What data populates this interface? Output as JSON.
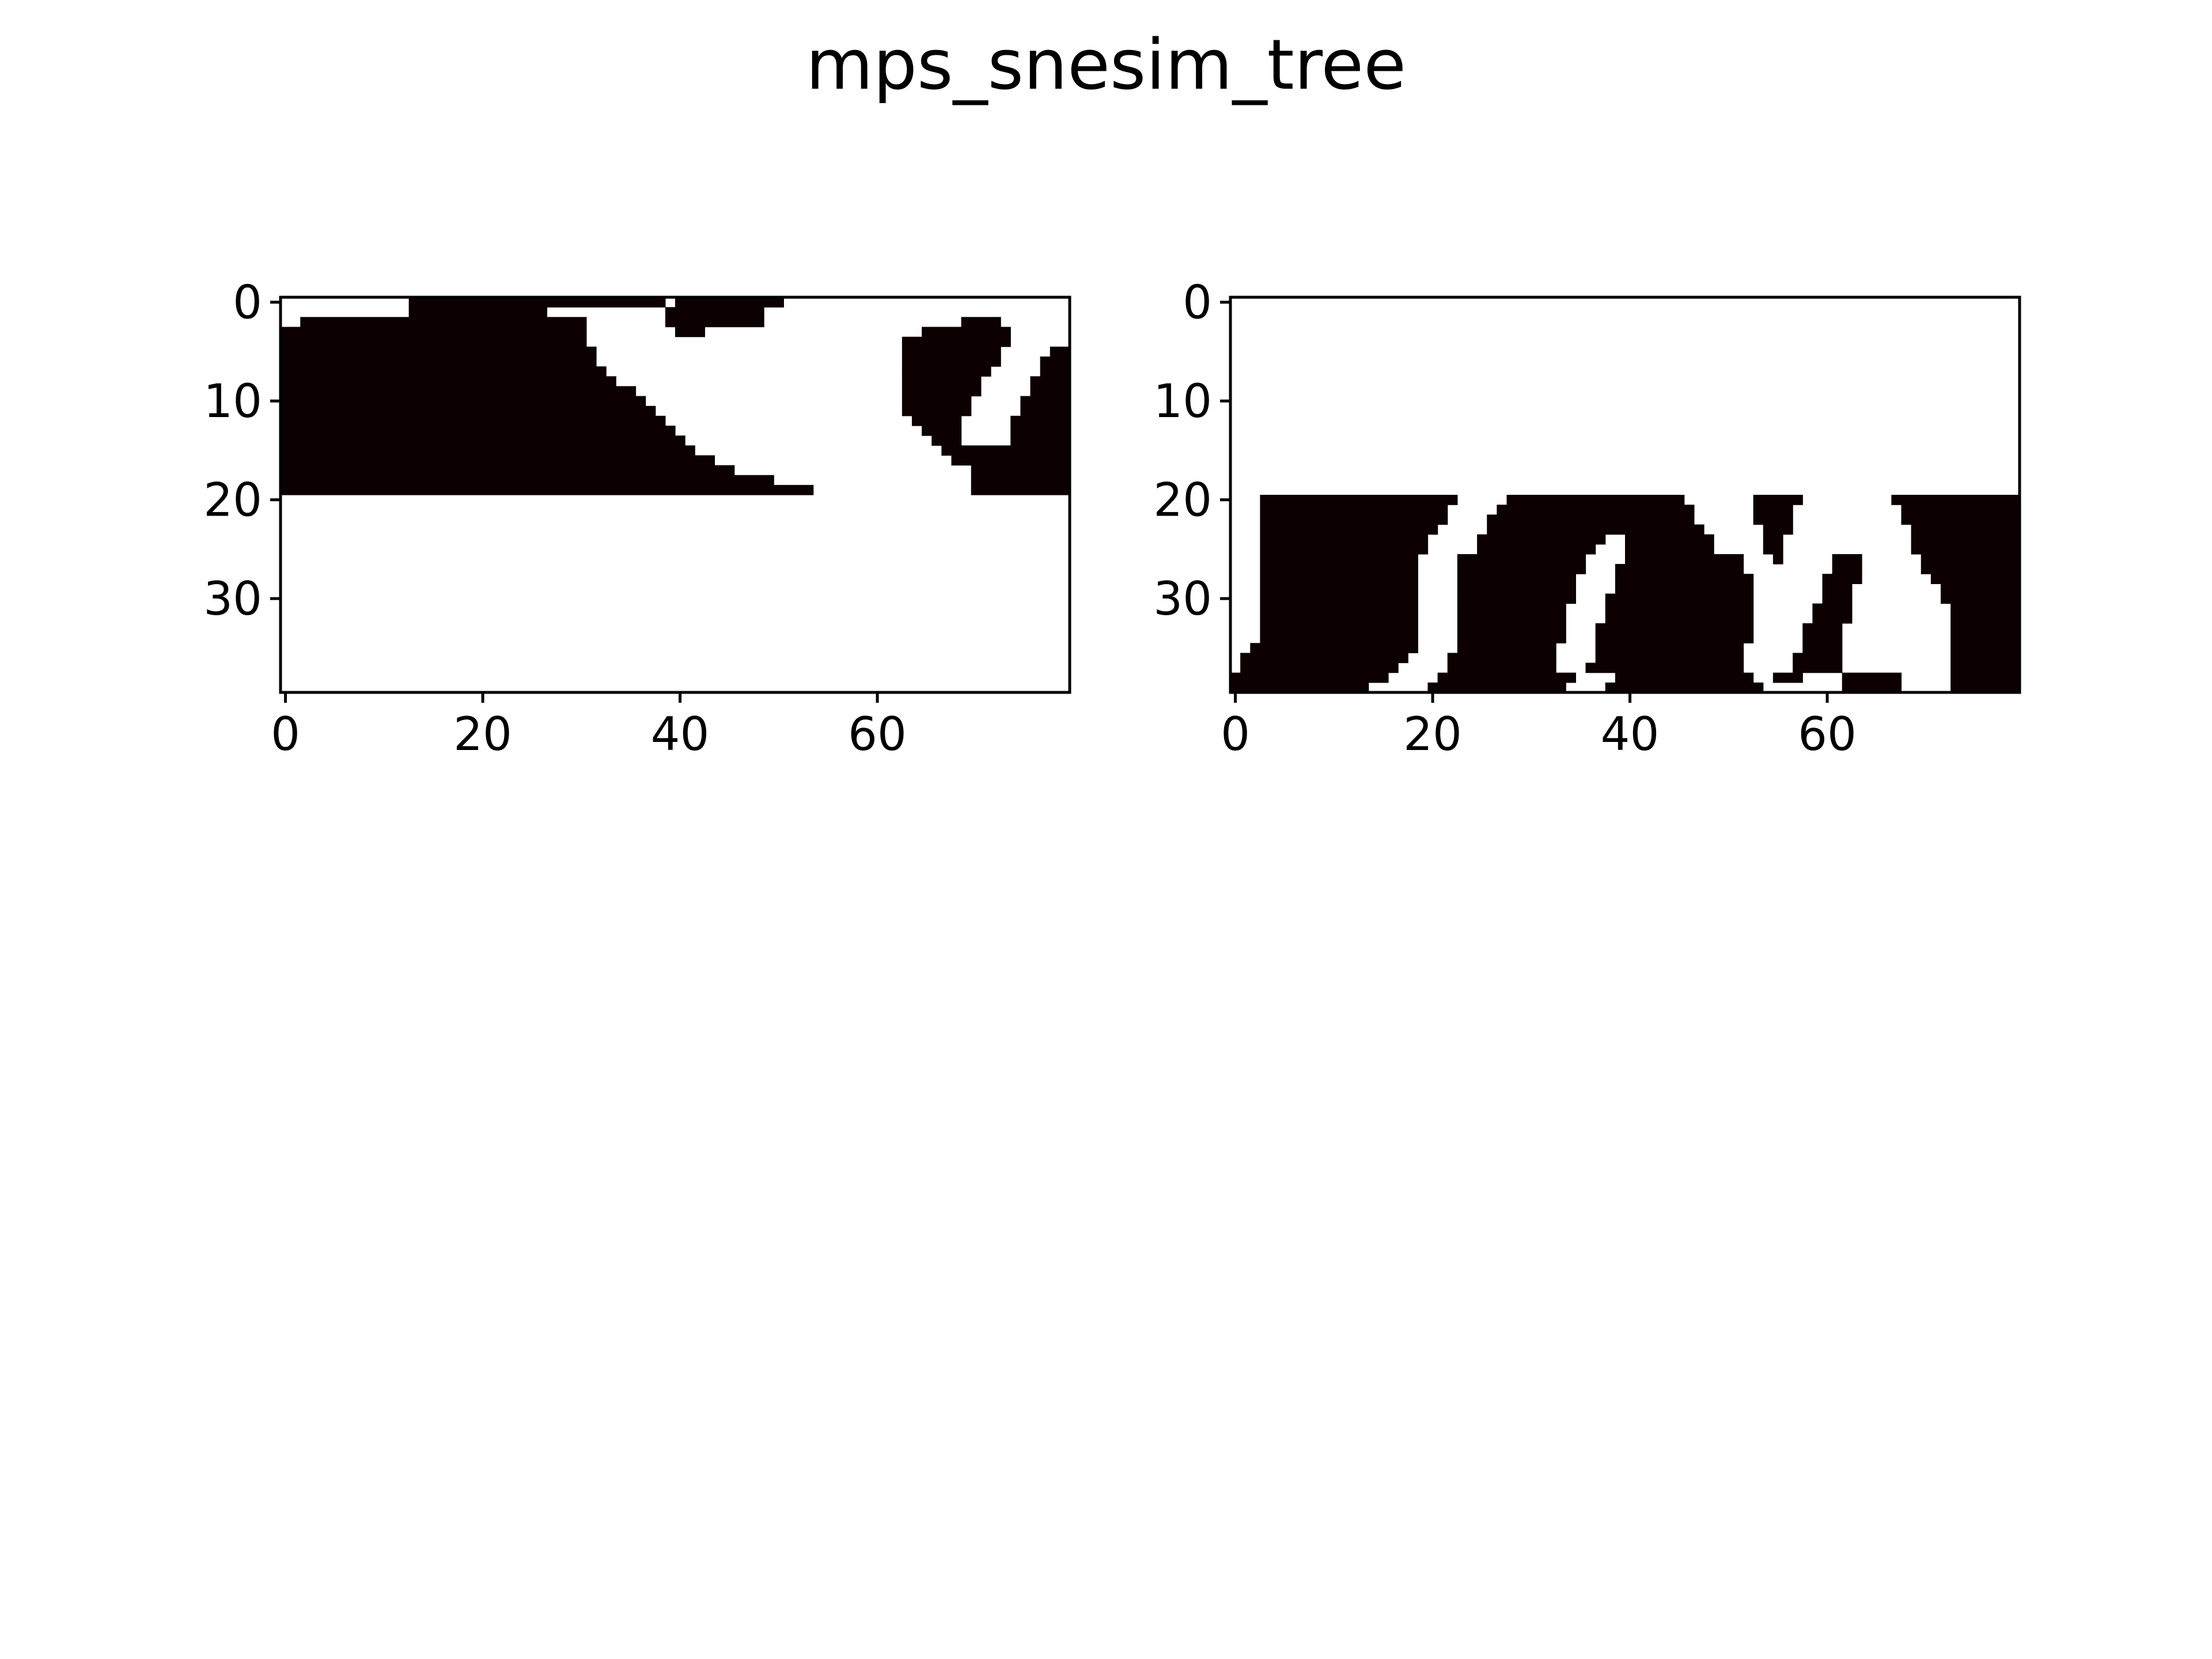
{
  "title": "mps_snesim_tree",
  "colors": {
    "facies_0": "#ffffff",
    "facies_1": "#0c0000",
    "axis": "#000000"
  },
  "chart_data": [
    {
      "type": "heatmap",
      "title": "",
      "grid": false,
      "nx": 80,
      "ny": 40,
      "xlim": [
        -0.5,
        79.5
      ],
      "ylim": [
        39.5,
        -0.5
      ],
      "xticks": [
        0,
        20,
        40,
        60
      ],
      "yticks": [
        0,
        10,
        20,
        30
      ],
      "xtick_labels": [
        "0",
        "20",
        "40",
        "60"
      ],
      "ytick_labels": [
        "0",
        "10",
        "20",
        "30"
      ],
      "value_encoding": "each row lists [start_col, end_col_exclusive] runs of value 1; all other cells are 0",
      "runs": [
        [
          [
            13,
            39
          ],
          [
            40,
            51
          ]
        ],
        [
          [
            13,
            27
          ],
          [
            39,
            49
          ]
        ],
        [
          [
            2,
            31
          ],
          [
            39,
            49
          ],
          [
            69,
            73
          ]
        ],
        [
          [
            0,
            31
          ],
          [
            40,
            43
          ],
          [
            65,
            74
          ]
        ],
        [
          [
            0,
            31
          ],
          [
            63,
            74
          ]
        ],
        [
          [
            0,
            32
          ],
          [
            63,
            73
          ],
          [
            78,
            80
          ]
        ],
        [
          [
            0,
            32
          ],
          [
            63,
            73
          ],
          [
            77,
            80
          ]
        ],
        [
          [
            0,
            33
          ],
          [
            63,
            72
          ],
          [
            77,
            80
          ]
        ],
        [
          [
            0,
            34
          ],
          [
            63,
            71
          ],
          [
            76,
            80
          ]
        ],
        [
          [
            0,
            36
          ],
          [
            63,
            71
          ],
          [
            76,
            80
          ]
        ],
        [
          [
            0,
            37
          ],
          [
            63,
            70
          ],
          [
            75,
            80
          ]
        ],
        [
          [
            0,
            38
          ],
          [
            63,
            70
          ],
          [
            75,
            80
          ]
        ],
        [
          [
            0,
            39
          ],
          [
            64,
            69
          ],
          [
            74,
            80
          ]
        ],
        [
          [
            0,
            40
          ],
          [
            65,
            69
          ],
          [
            74,
            80
          ]
        ],
        [
          [
            0,
            41
          ],
          [
            66,
            69
          ],
          [
            74,
            80
          ]
        ],
        [
          [
            0,
            42
          ],
          [
            67,
            80
          ]
        ],
        [
          [
            0,
            44
          ],
          [
            68,
            80
          ]
        ],
        [
          [
            0,
            46
          ],
          [
            70,
            80
          ]
        ],
        [
          [
            0,
            50
          ],
          [
            70,
            80
          ]
        ],
        [
          [
            0,
            54
          ],
          [
            70,
            80
          ]
        ]
      ]
    },
    {
      "type": "heatmap",
      "title": "",
      "grid": false,
      "nx": 80,
      "ny": 40,
      "xlim": [
        -0.5,
        79.5
      ],
      "ylim": [
        39.5,
        -0.5
      ],
      "xticks": [
        0,
        20,
        40,
        60
      ],
      "yticks": [
        0,
        10,
        20,
        30
      ],
      "xtick_labels": [
        "0",
        "20",
        "40",
        "60"
      ],
      "ytick_labels": [
        "0",
        "10",
        "20",
        "30"
      ],
      "value_encoding": "each row lists [start_col, end_col_exclusive] runs of value 1; all other cells are 0",
      "row_offset": 20,
      "runs": [
        [
          [
            3,
            23
          ],
          [
            28,
            46
          ],
          [
            53,
            58
          ],
          [
            67,
            80
          ]
        ],
        [
          [
            3,
            22
          ],
          [
            27,
            47
          ],
          [
            53,
            57
          ],
          [
            68,
            80
          ]
        ],
        [
          [
            3,
            22
          ],
          [
            26,
            47
          ],
          [
            53,
            57
          ],
          [
            68,
            80
          ]
        ],
        [
          [
            3,
            21
          ],
          [
            26,
            48
          ],
          [
            54,
            57
          ],
          [
            69,
            80
          ]
        ],
        [
          [
            3,
            20
          ],
          [
            25,
            38
          ],
          [
            40,
            49
          ],
          [
            54,
            56
          ],
          [
            69,
            80
          ]
        ],
        [
          [
            3,
            20
          ],
          [
            25,
            37
          ],
          [
            40,
            49
          ],
          [
            54,
            56
          ],
          [
            69,
            80
          ]
        ],
        [
          [
            3,
            19
          ],
          [
            23,
            36
          ],
          [
            40,
            52
          ],
          [
            55,
            56
          ],
          [
            61,
            64
          ],
          [
            70,
            80
          ]
        ],
        [
          [
            3,
            19
          ],
          [
            23,
            36
          ],
          [
            39,
            52
          ],
          [
            61,
            64
          ],
          [
            70,
            80
          ]
        ],
        [
          [
            3,
            19
          ],
          [
            23,
            35
          ],
          [
            39,
            53
          ],
          [
            60,
            64
          ],
          [
            71,
            80
          ]
        ],
        [
          [
            3,
            19
          ],
          [
            23,
            35
          ],
          [
            39,
            53
          ],
          [
            60,
            63
          ],
          [
            72,
            80
          ]
        ],
        [
          [
            3,
            19
          ],
          [
            23,
            35
          ],
          [
            38,
            53
          ],
          [
            60,
            63
          ],
          [
            72,
            80
          ]
        ],
        [
          [
            3,
            19
          ],
          [
            23,
            34
          ],
          [
            38,
            53
          ],
          [
            59,
            63
          ],
          [
            73,
            80
          ]
        ],
        [
          [
            3,
            19
          ],
          [
            23,
            34
          ],
          [
            38,
            53
          ],
          [
            59,
            63
          ],
          [
            73,
            80
          ]
        ],
        [
          [
            3,
            19
          ],
          [
            23,
            34
          ],
          [
            37,
            53
          ],
          [
            58,
            62
          ],
          [
            73,
            80
          ]
        ],
        [
          [
            3,
            19
          ],
          [
            23,
            34
          ],
          [
            37,
            53
          ],
          [
            58,
            62
          ],
          [
            73,
            80
          ]
        ],
        [
          [
            2,
            19
          ],
          [
            23,
            33
          ],
          [
            37,
            52
          ],
          [
            58,
            62
          ],
          [
            73,
            80
          ]
        ],
        [
          [
            1,
            18
          ],
          [
            22,
            33
          ],
          [
            37,
            52
          ],
          [
            57,
            62
          ],
          [
            73,
            80
          ]
        ],
        [
          [
            1,
            17
          ],
          [
            22,
            33
          ],
          [
            36,
            52
          ],
          [
            57,
            62
          ],
          [
            73,
            80
          ]
        ],
        [
          [
            0,
            16
          ],
          [
            21,
            35
          ],
          [
            39,
            53
          ],
          [
            55,
            58
          ],
          [
            62,
            68
          ],
          [
            73,
            80
          ]
        ],
        [
          [
            0,
            14
          ],
          [
            20,
            34
          ],
          [
            38,
            54
          ],
          [
            62,
            68
          ],
          [
            73,
            80
          ]
        ]
      ]
    }
  ]
}
